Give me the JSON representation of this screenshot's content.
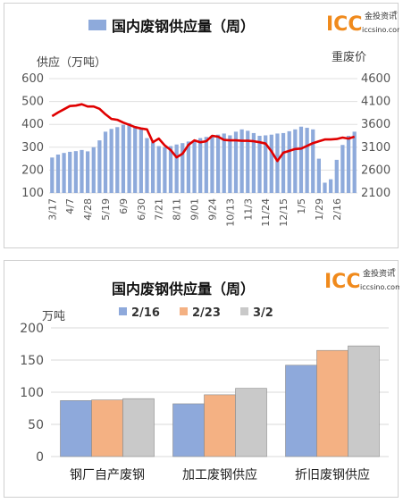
{
  "logo": {
    "brand": "ICC",
    "cn": "金投资讯",
    "site": "iccsino.com",
    "reg": "®"
  },
  "chart_data": [
    {
      "type": "bar+line",
      "title": "国内废钢供应量（周）",
      "legend": [
        "国内废钢供应量（周）"
      ],
      "ylabel_left": "供应（万吨）",
      "ylabel_right": "重废价",
      "ylim_left": [
        100,
        600
      ],
      "ylim_right": [
        2100,
        4600
      ],
      "yticks_left": [
        100,
        200,
        300,
        400,
        500,
        600
      ],
      "yticks_right": [
        2100,
        2600,
        3100,
        3600,
        4100,
        4600
      ],
      "xtick_labels": [
        "3/17",
        "4/7",
        "4/28",
        "5/19",
        "6/9",
        "6/30",
        "7/21",
        "8/11",
        "9/01",
        "9/24",
        "10/13",
        "11/3",
        "11/24",
        "12/15",
        "1/5",
        "1/29",
        "2/16"
      ],
      "xtick_index": [
        0,
        3,
        6,
        9,
        12,
        15,
        18,
        21,
        24,
        27,
        30,
        33,
        36,
        39,
        42,
        45,
        48
      ],
      "bar_color": "#8eaadb",
      "line_color": "#e00000",
      "series": [
        {
          "name": "国内废钢供应量（周）",
          "axis": "left",
          "values": [
            255,
            268,
            275,
            280,
            283,
            288,
            282,
            300,
            330,
            368,
            380,
            388,
            398,
            405,
            392,
            378,
            340,
            322,
            305,
            300,
            305,
            312,
            318,
            325,
            328,
            340,
            345,
            350,
            355,
            360,
            352,
            368,
            378,
            372,
            362,
            350,
            352,
            355,
            360,
            362,
            370,
            378,
            390,
            385,
            378,
            250,
            145,
            160,
            245,
            310,
            350,
            368
          ]
        },
        {
          "axis": "right",
          "values": [
            3780,
            3860,
            3930,
            4000,
            4010,
            4040,
            3990,
            3990,
            3940,
            3820,
            3720,
            3700,
            3640,
            3590,
            3540,
            3510,
            3490,
            3210,
            3290,
            3140,
            3040,
            2880,
            2960,
            3150,
            3250,
            3210,
            3230,
            3350,
            3330,
            3260,
            3250,
            3250,
            3240,
            3240,
            3230,
            3210,
            3180,
            3010,
            2800,
            2980,
            3020,
            3060,
            3070,
            3130,
            3190,
            3230,
            3270,
            3270,
            3280,
            3310,
            3290,
            3330
          ]
        }
      ]
    },
    {
      "type": "bar",
      "title": "国内废钢供应量（周）",
      "ylabel": "万吨",
      "ylim": [
        0,
        200
      ],
      "yticks": [
        0,
        50,
        100,
        150,
        200
      ],
      "categories": [
        "钢厂自产废钢",
        "加工废钢供应",
        "折旧废钢供应"
      ],
      "series": [
        {
          "name": "2/16",
          "color": "#8ea9db",
          "values": [
            87,
            82,
            142
          ]
        },
        {
          "name": "2/23",
          "color": "#f4b183",
          "values": [
            88,
            96,
            165
          ]
        },
        {
          "name": "3/2",
          "color": "#c9c9c9",
          "values": [
            90,
            106,
            172
          ]
        }
      ]
    }
  ]
}
